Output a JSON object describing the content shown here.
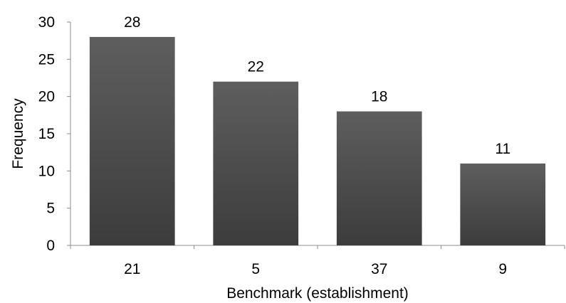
{
  "chart_data": {
    "type": "bar",
    "categories": [
      "21",
      "5",
      "37",
      "9"
    ],
    "values": [
      28,
      22,
      18,
      11
    ],
    "data_labels": [
      "28",
      "22",
      "18",
      "11"
    ],
    "title": "",
    "xlabel": "Benchmark (establishment)",
    "ylabel": "Frequency",
    "ylim": [
      0,
      30
    ],
    "yticks": [
      "0",
      "5",
      "10",
      "15",
      "20",
      "25",
      "30"
    ],
    "grid": false,
    "legend": "none",
    "bar_color_top": "#5e5e5e",
    "bar_color_bottom": "#3c3c3c"
  }
}
